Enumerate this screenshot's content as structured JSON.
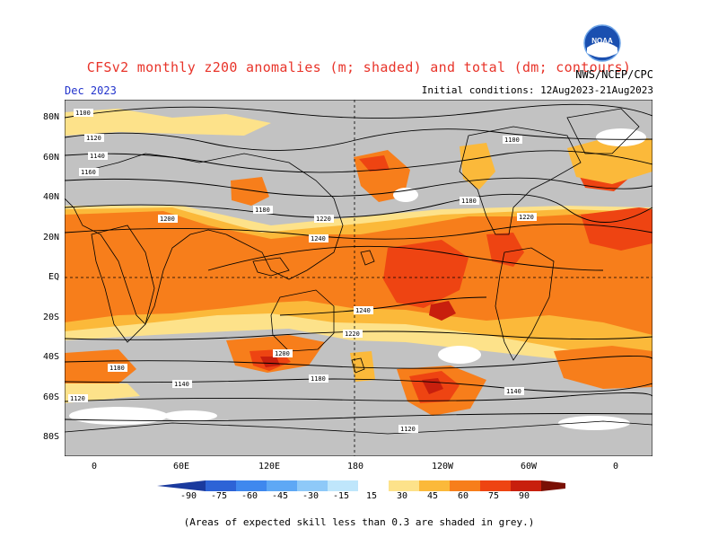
{
  "header": {
    "title": "CFSv2 monthly z200 anomalies (m; shaded) and total (dm; contours)",
    "month": "Dec 2023",
    "initial_conditions": "Initial conditions: 12Aug2023-21Aug2023",
    "agency": "NWS/NCEP/CPC",
    "logo_text": "NOAA"
  },
  "map": {
    "lat_labels": [
      "80N",
      "60N",
      "40N",
      "20N",
      "EQ",
      "20S",
      "40S",
      "60S",
      "80S"
    ],
    "lon_labels": [
      "0",
      "60E",
      "120E",
      "180",
      "120W",
      "60W",
      "0"
    ],
    "contour_labels": [
      "1100",
      "1120",
      "1140",
      "1160",
      "1180",
      "1200",
      "1220",
      "1240"
    ],
    "colors": {
      "skill_grey": "#c2c2c2",
      "ocean_fill": "#ffffff",
      "pos_15_30": "#fde28a",
      "pos_30_45": "#fbb93a",
      "pos_45_60": "#f77e1b",
      "pos_60_75": "#ee4412",
      "pos_75_90": "#c81f0d",
      "pos_90": "#7a1005"
    }
  },
  "colorbar": {
    "ticks": [
      "-90",
      "-75",
      "-60",
      "-45",
      "-30",
      "-15",
      "15",
      "30",
      "45",
      "60",
      "75",
      "90"
    ],
    "colors": [
      "#1a3a9e",
      "#2d63d6",
      "#3f88ee",
      "#5ea8f5",
      "#8ec9f8",
      "#bfe6fb",
      "#ffffff",
      "#fde28a",
      "#fbb93a",
      "#f77e1b",
      "#ee4412",
      "#c81f0d",
      "#7a1005"
    ]
  },
  "footer": {
    "note": "(Areas of expected skill less than 0.3 are shaded in grey.)"
  }
}
